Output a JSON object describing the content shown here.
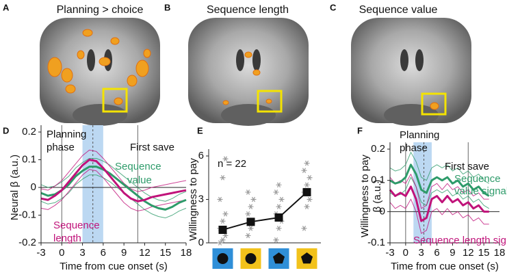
{
  "brain_panels": [
    {
      "letter": "A",
      "title": "Planning > choice"
    },
    {
      "letter": "B",
      "title": "Sequence length"
    },
    {
      "letter": "C",
      "title": "Sequence value"
    }
  ],
  "chart_data": [
    {
      "type": "line",
      "panel": "D",
      "x_label": "Time from cue onset (s)",
      "y_label": "Neural β (a.u.)",
      "x": [
        -3,
        -2,
        -1,
        0,
        1,
        2,
        3,
        4,
        5,
        6,
        7,
        8,
        9,
        10,
        11,
        12,
        13,
        14,
        15,
        16,
        17,
        18
      ],
      "series": [
        {
          "color": "#2e9b6a",
          "width": 1,
          "values": [
            0.01,
            0,
            0.005,
            0.02,
            0.04,
            0.07,
            0.09,
            0.105,
            0.105,
            0.095,
            0.08,
            0.06,
            0.04,
            0.02,
            0,
            -0.02,
            -0.035,
            -0.045,
            -0.05,
            -0.04,
            -0.025,
            -0.015
          ]
        },
        {
          "color": "#2e9b6a",
          "width": 1,
          "values": [
            -0.05,
            -0.06,
            -0.055,
            -0.04,
            -0.02,
            0.01,
            0.03,
            0.045,
            0.045,
            0.035,
            0.02,
            0,
            -0.02,
            -0.04,
            -0.06,
            -0.08,
            -0.095,
            -0.105,
            -0.11,
            -0.1,
            -0.085,
            -0.075
          ]
        },
        {
          "color": "#c0137a",
          "width": 1,
          "values": [
            -0.005,
            -0.01,
            0.005,
            0.025,
            0.055,
            0.085,
            0.115,
            0.135,
            0.13,
            0.105,
            0.075,
            0.045,
            0.015,
            -0.005,
            -0.015,
            -0.01,
            0,
            0.005,
            0.01,
            0.015,
            0.02,
            0.025
          ]
        },
        {
          "color": "#c0137a",
          "width": 1,
          "values": [
            -0.075,
            -0.08,
            -0.065,
            -0.045,
            -0.015,
            0.015,
            0.045,
            0.065,
            0.06,
            0.035,
            0.005,
            -0.025,
            -0.055,
            -0.075,
            -0.085,
            -0.08,
            -0.07,
            -0.065,
            -0.06,
            -0.055,
            -0.05,
            -0.045
          ]
        },
        {
          "color": "#2e9b6a",
          "width": 3,
          "values": [
            -0.02,
            -0.03,
            -0.025,
            -0.01,
            0.01,
            0.04,
            0.06,
            0.075,
            0.075,
            0.065,
            0.05,
            0.03,
            0.01,
            -0.01,
            -0.03,
            -0.05,
            -0.065,
            -0.075,
            -0.08,
            -0.07,
            -0.055,
            -0.045
          ]
        },
        {
          "color": "#c0137a",
          "width": 3,
          "values": [
            -0.04,
            -0.045,
            -0.03,
            -0.01,
            0.02,
            0.05,
            0.08,
            0.1,
            0.095,
            0.07,
            0.04,
            0.01,
            -0.02,
            -0.04,
            -0.05,
            -0.045,
            -0.035,
            -0.03,
            -0.025,
            -0.02,
            -0.015,
            -0.01
          ]
        }
      ],
      "xlim": [
        -3,
        18
      ],
      "xticks": [
        -3,
        0,
        3,
        6,
        9,
        12,
        15,
        18
      ],
      "ylim": [
        -0.2,
        0.2
      ],
      "yticks": [
        -0.2,
        -0.1,
        0,
        0.1,
        0.2
      ],
      "highlight": [
        3,
        6
      ],
      "highlight_color": "#bcd8f2",
      "vlines": [
        0,
        11
      ],
      "dashed_vline": 4.5,
      "zero_line": true,
      "annotations": [
        "Planning",
        "phase",
        "First save",
        "Sequence",
        "value",
        "Sequence",
        "length"
      ]
    },
    {
      "type": "point",
      "panel": "E",
      "y_label": "Willingness to pay",
      "categories": [
        null,
        null,
        null,
        null
      ],
      "values": [
        0.9,
        1.45,
        1.75,
        3.5
      ],
      "errors": [
        0.2,
        0.2,
        0.2,
        0.25
      ],
      "individual": [
        [
          0,
          0.2,
          0.5,
          1,
          1.5,
          2,
          3,
          4.5,
          5.8
        ],
        [
          0.5,
          1,
          1.5,
          2,
          2.5,
          3,
          3.5
        ],
        [
          0.2,
          1,
          1.5,
          2,
          2.5,
          3,
          3.5,
          4
        ],
        [
          1,
          2.5,
          3,
          3.5,
          4,
          4.5,
          5,
          5.5
        ]
      ],
      "ylim": [
        0,
        6
      ],
      "yticks": [
        0,
        3,
        6
      ],
      "color": "#111",
      "point_color": "#9a9a9a",
      "icons": [
        {
          "shape": "circle",
          "background": "#2f8fd8"
        },
        {
          "shape": "circle",
          "background": "#f2c21b"
        },
        {
          "shape": "pentagon",
          "background": "#2f8fd8"
        },
        {
          "shape": "pentagon",
          "background": "#f2c21b"
        }
      ],
      "annotations": [
        "n = 22"
      ]
    },
    {
      "type": "line",
      "panel": "F",
      "x_label": "Time from cue onset (s)",
      "y_label": [
        "Willingness to pay",
        "β (a.u.)"
      ],
      "x": [
        -3,
        -2,
        -1,
        0,
        1,
        2,
        3,
        4,
        5,
        6,
        7,
        8,
        9,
        10,
        11,
        12,
        13,
        14,
        15,
        16
      ],
      "series": [
        {
          "color": "#2e9b6a",
          "width": 1,
          "values": [
            0.14,
            0.13,
            0.135,
            0.15,
            0.19,
            0.16,
            0.11,
            0.1,
            0.14,
            0.15,
            0.14,
            0.15,
            0.13,
            0.14,
            0.12,
            0.13,
            0.11,
            0.12,
            0.1,
            0.09
          ]
        },
        {
          "color": "#2e9b6a",
          "width": 1,
          "values": [
            0.06,
            0.05,
            0.055,
            0.07,
            0.11,
            0.08,
            0.03,
            0.02,
            0.06,
            0.07,
            0.06,
            0.07,
            0.05,
            0.06,
            0.04,
            0.05,
            0.03,
            0.04,
            0.02,
            0.01
          ]
        },
        {
          "color": "#c0137a",
          "width": 1,
          "values": [
            0.11,
            0.09,
            0.1,
            0.09,
            0.12,
            0.08,
            0.01,
            0.02,
            0.08,
            0.09,
            0.07,
            0.09,
            0.07,
            0.08,
            0.06,
            0.07,
            0.05,
            0.06,
            0.04,
            0.04
          ]
        },
        {
          "color": "#c0137a",
          "width": 1,
          "values": [
            0.03,
            0.01,
            0.02,
            0.01,
            0.04,
            0,
            -0.07,
            -0.06,
            0,
            0.01,
            -0.01,
            0.01,
            -0.01,
            0,
            -0.02,
            -0.01,
            -0.03,
            -0.02,
            -0.04,
            -0.04
          ]
        },
        {
          "color": "#2e9b6a",
          "width": 3,
          "values": [
            0.1,
            0.09,
            0.095,
            0.11,
            0.15,
            0.12,
            0.07,
            0.06,
            0.1,
            0.11,
            0.1,
            0.11,
            0.09,
            0.1,
            0.08,
            0.09,
            0.07,
            0.08,
            0.06,
            0.05
          ]
        },
        {
          "color": "#c0137a",
          "width": 3,
          "values": [
            0.07,
            0.05,
            0.06,
            0.05,
            0.08,
            0.04,
            -0.03,
            -0.02,
            0.04,
            0.05,
            0.03,
            0.05,
            0.03,
            0.04,
            0.02,
            0.03,
            0.01,
            0.02,
            0,
            0
          ]
        }
      ],
      "xlim": [
        -3,
        18
      ],
      "xticks": [
        -3,
        0,
        3,
        6,
        9,
        12,
        15,
        18
      ],
      "ylim": [
        -0.1,
        0.2
      ],
      "yticks": [
        -0.1,
        0,
        0.1,
        0.2
      ],
      "highlight": [
        1.5,
        5
      ],
      "highlight_color": "#bcd8f2",
      "vlines": [
        0,
        12
      ],
      "dashed_vline": 3.5,
      "zero_line": true,
      "annotations": [
        "Planning",
        "phase",
        "First save",
        "Sequence",
        "value signal",
        "Sequence length signal"
      ]
    }
  ]
}
